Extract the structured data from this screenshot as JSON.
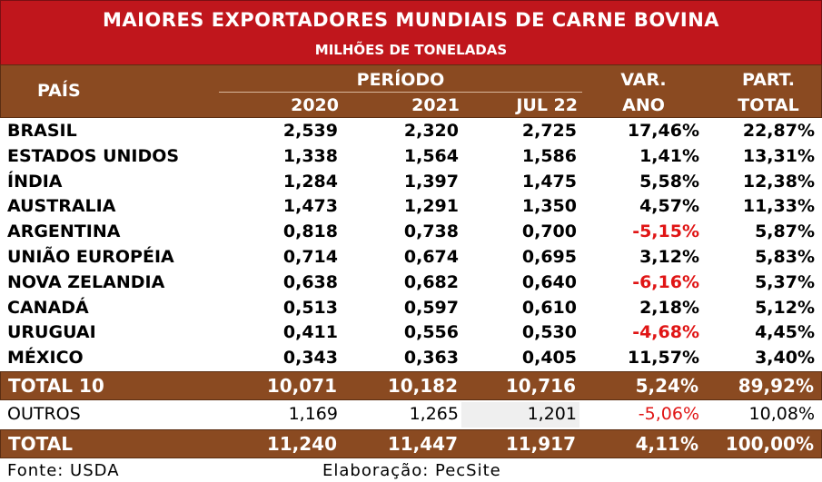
{
  "title": "MAIORES EXPORTADORES MUNDIAIS DE CARNE BOVINA",
  "subtitle": "MILHÕES DE TONELADAS",
  "header": {
    "pais": "PAÍS",
    "periodo": "PERÍODO",
    "years": [
      "2020",
      "2021",
      "JUL 22"
    ],
    "var_line1": "VAR.",
    "var_line2": "ANO",
    "part_line1": "PART.",
    "part_line2": "TOTAL"
  },
  "rows": [
    {
      "country": "BRASIL",
      "v2020": "2,539",
      "v2021": "2,320",
      "jul22": "2,725",
      "var": "17,46%",
      "part": "22,87%"
    },
    {
      "country": "ESTADOS UNIDOS",
      "v2020": "1,338",
      "v2021": "1,564",
      "jul22": "1,586",
      "var": "1,41%",
      "part": "13,31%"
    },
    {
      "country": "ÍNDIA",
      "v2020": "1,284",
      "v2021": "1,397",
      "jul22": "1,475",
      "var": "5,58%",
      "part": "12,38%"
    },
    {
      "country": "AUSTRALIA",
      "v2020": "1,473",
      "v2021": "1,291",
      "jul22": "1,350",
      "var": "4,57%",
      "part": "11,33%"
    },
    {
      "country": "ARGENTINA",
      "v2020": "0,818",
      "v2021": "0,738",
      "jul22": "0,700",
      "var": "-5,15%",
      "part": "5,87%"
    },
    {
      "country": "UNIÃO EUROPÉIA",
      "v2020": "0,714",
      "v2021": "0,674",
      "jul22": "0,695",
      "var": "3,12%",
      "part": "5,83%"
    },
    {
      "country": "NOVA ZELANDIA",
      "v2020": "0,638",
      "v2021": "0,682",
      "jul22": "0,640",
      "var": "-6,16%",
      "part": "5,37%"
    },
    {
      "country": "CANADÁ",
      "v2020": "0,513",
      "v2021": "0,597",
      "jul22": "0,610",
      "var": "2,18%",
      "part": "5,12%"
    },
    {
      "country": "URUGUAI",
      "v2020": "0,411",
      "v2021": "0,556",
      "jul22": "0,530",
      "var": "-4,68%",
      "part": "4,45%"
    },
    {
      "country": "MÉXICO",
      "v2020": "0,343",
      "v2021": "0,363",
      "jul22": "0,405",
      "var": "11,57%",
      "part": "3,40%"
    }
  ],
  "total10": {
    "label": "TOTAL 10",
    "v2020": "10,071",
    "v2021": "10,182",
    "jul22": "10,716",
    "var": "5,24%",
    "part": "89,92%"
  },
  "outros": {
    "label": "OUTROS",
    "v2020": "1,169",
    "v2021": "1,265",
    "jul22": "1,201",
    "var": "-5,06%",
    "part": "10,08%"
  },
  "total": {
    "label": "TOTAL",
    "v2020": "11,240",
    "v2021": "11,447",
    "jul22": "11,917",
    "var": "4,11%",
    "part": "100,00%"
  },
  "footer": {
    "fonte": "Fonte: USDA",
    "elaboracao": "Elaboração: PecSite"
  },
  "colors": {
    "title_bg": "#c0161c",
    "header_bg": "#8a4a21",
    "negative": "#e01515"
  }
}
